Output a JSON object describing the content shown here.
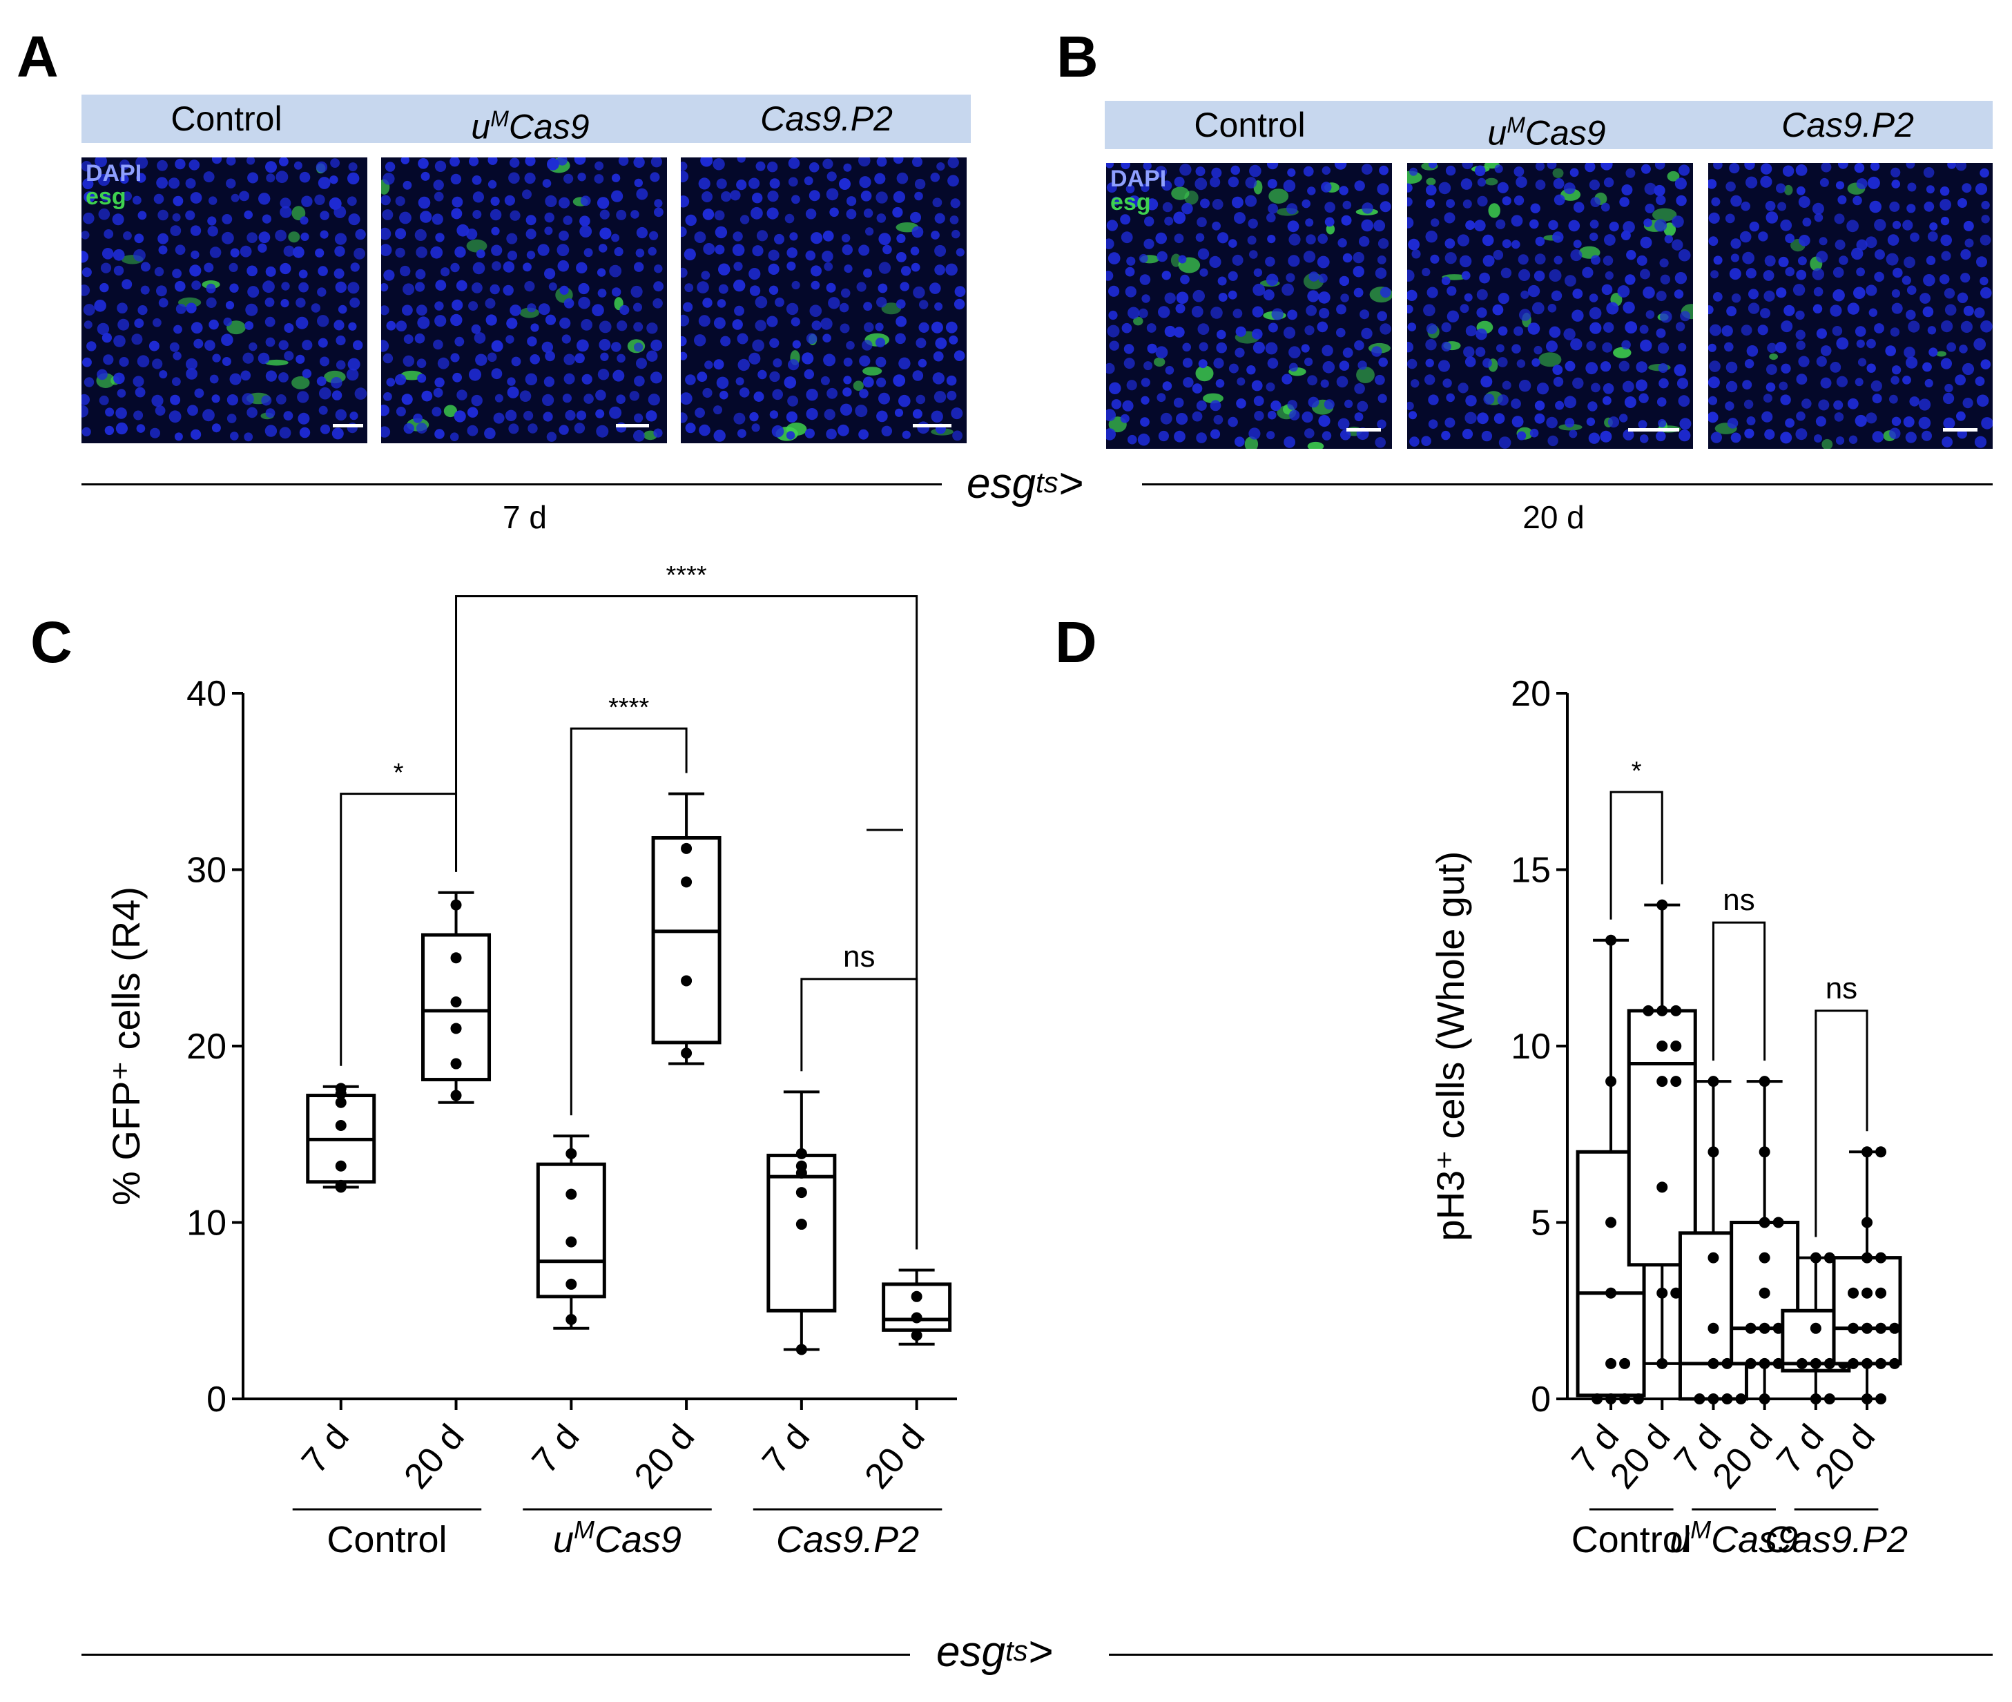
{
  "panels": {
    "A": {
      "letter": "A",
      "headers": [
        {
          "base": "Control",
          "sup": "",
          "rest": "",
          "italic": false
        },
        {
          "base": "u",
          "sup": "M",
          "rest": "Cas9",
          "italic": true
        },
        {
          "base": "Cas9.P2",
          "sup": "",
          "rest": "",
          "italic": true
        }
      ],
      "legend": {
        "dapi": "DAPI",
        "esg": "esg"
      },
      "timepoint": "7 d"
    },
    "B": {
      "letter": "B",
      "headers": [
        {
          "base": "Control",
          "sup": "",
          "rest": "",
          "italic": false
        },
        {
          "base": "u",
          "sup": "M",
          "rest": "Cas9",
          "italic": true
        },
        {
          "base": "Cas9.P2",
          "sup": "",
          "rest": "",
          "italic": true
        }
      ],
      "legend": {
        "dapi": "DAPI",
        "esg": "esg"
      },
      "timepoint": "20 d"
    },
    "C": {
      "letter": "C"
    },
    "D": {
      "letter": "D"
    }
  },
  "genotype_label": {
    "base": "esg",
    "sup": "ts",
    "rest": ">"
  },
  "colors": {
    "header_bg": "#c7d7ee",
    "dapi": "#1e2bd6",
    "esg": "#3fd24f",
    "background": "#04082a"
  },
  "chart_data": [
    {
      "type": "box",
      "panel": "C",
      "ylabel": "% GFP⁺ cells (R4)",
      "ylim": [
        0,
        40
      ],
      "yticks": [
        0,
        10,
        20,
        30,
        40
      ],
      "categories": [
        "7 d",
        "20 d",
        "7 d",
        "20 d",
        "7 d",
        "20 d"
      ],
      "groups": [
        {
          "label": "Control",
          "italic": false,
          "categories": [
            0,
            1
          ]
        },
        {
          "label": "uMCas9",
          "italic": true,
          "categories": [
            2,
            3
          ]
        },
        {
          "label": "Cas9.P2",
          "italic": true,
          "categories": [
            4,
            5
          ]
        }
      ],
      "boxes": [
        {
          "min": 12.0,
          "q1": 12.3,
          "median": 14.7,
          "q3": 17.2,
          "max": 17.7,
          "points": [
            12.0,
            12.1,
            13.2,
            15.5,
            16.8,
            17.3,
            17.6
          ]
        },
        {
          "min": 16.8,
          "q1": 18.1,
          "median": 22.0,
          "q3": 26.3,
          "max": 28.7,
          "points": [
            17.2,
            19.0,
            21.0,
            22.5,
            25.0,
            28.0
          ]
        },
        {
          "min": 4.0,
          "q1": 5.8,
          "median": 7.8,
          "q3": 13.3,
          "max": 14.9,
          "points": [
            4.5,
            6.5,
            8.9,
            11.6,
            13.9
          ]
        },
        {
          "min": 19.0,
          "q1": 20.2,
          "median": 26.5,
          "q3": 31.8,
          "max": 34.3,
          "points": [
            19.6,
            23.7,
            29.3,
            31.2
          ]
        },
        {
          "min": 2.8,
          "q1": 5.0,
          "median": 12.6,
          "q3": 13.8,
          "max": 17.4,
          "points": [
            2.8,
            9.9,
            11.7,
            12.8,
            13.2,
            13.9
          ]
        },
        {
          "min": 3.1,
          "q1": 3.9,
          "median": 4.5,
          "q3": 6.5,
          "max": 7.3,
          "points": [
            3.6,
            4.6,
            5.8
          ]
        }
      ],
      "comparisons": [
        {
          "from": 0,
          "to": 1,
          "label": "*",
          "y": 34.3
        },
        {
          "from": 2,
          "to": 3,
          "label": "****",
          "y": 38.0
        },
        {
          "from": 1,
          "to": 5,
          "label": "****",
          "y": 45.5
        },
        {
          "from": 4,
          "to": 5,
          "label": "ns",
          "y": 23.8
        }
      ]
    },
    {
      "type": "box",
      "panel": "D",
      "ylabel": "pH3⁺ cells (Whole gut)",
      "ylim": [
        0,
        20
      ],
      "yticks": [
        0,
        5,
        10,
        15,
        20
      ],
      "categories": [
        "7 d",
        "20 d",
        "7 d",
        "20 d",
        "7 d",
        "20 d"
      ],
      "groups": [
        {
          "label": "Control",
          "italic": false,
          "categories": [
            0,
            1
          ]
        },
        {
          "label": "uMCas9",
          "italic": true,
          "categories": [
            2,
            3
          ]
        },
        {
          "label": "Cas9.P2",
          "italic": true,
          "categories": [
            4,
            5
          ]
        }
      ],
      "boxes": [
        {
          "min": 0,
          "q1": 0.1,
          "median": 3.0,
          "q3": 7.0,
          "max": 13.0,
          "points": [
            0,
            0,
            0,
            0,
            1,
            1,
            3,
            5,
            9,
            13
          ]
        },
        {
          "min": 1,
          "q1": 3.8,
          "median": 9.5,
          "q3": 11.0,
          "max": 14.0,
          "points": [
            1,
            3,
            3,
            6,
            9,
            9,
            10,
            10,
            11,
            11,
            11,
            14
          ]
        },
        {
          "min": 0,
          "q1": 0,
          "median": 1.0,
          "q3": 4.7,
          "max": 9.0,
          "points": [
            0,
            0,
            0,
            0,
            1,
            1,
            2,
            4,
            7,
            9
          ]
        },
        {
          "min": 0,
          "q1": 1.0,
          "median": 2.0,
          "q3": 5.0,
          "max": 9.0,
          "points": [
            0,
            1,
            1,
            1,
            1,
            2,
            2,
            2,
            2,
            3,
            4,
            5,
            5,
            7,
            9
          ]
        },
        {
          "min": 0,
          "q1": 0.8,
          "median": 1.0,
          "q3": 2.5,
          "max": 4.0,
          "points": [
            0,
            0,
            1,
            1,
            1,
            1,
            2,
            4,
            4
          ]
        },
        {
          "min": 0,
          "q1": 1.0,
          "median": 2.0,
          "q3": 4.0,
          "max": 7.0,
          "points": [
            0,
            0,
            1,
            1,
            1,
            1,
            2,
            2,
            2,
            2,
            3,
            3,
            3,
            4,
            4,
            5,
            7,
            7
          ]
        }
      ],
      "comparisons": [
        {
          "from": 0,
          "to": 1,
          "label": "*",
          "y": 17.2
        },
        {
          "from": 2,
          "to": 3,
          "label": "ns",
          "y": 13.5
        },
        {
          "from": 4,
          "to": 5,
          "label": "ns",
          "y": 11.0
        }
      ]
    }
  ]
}
